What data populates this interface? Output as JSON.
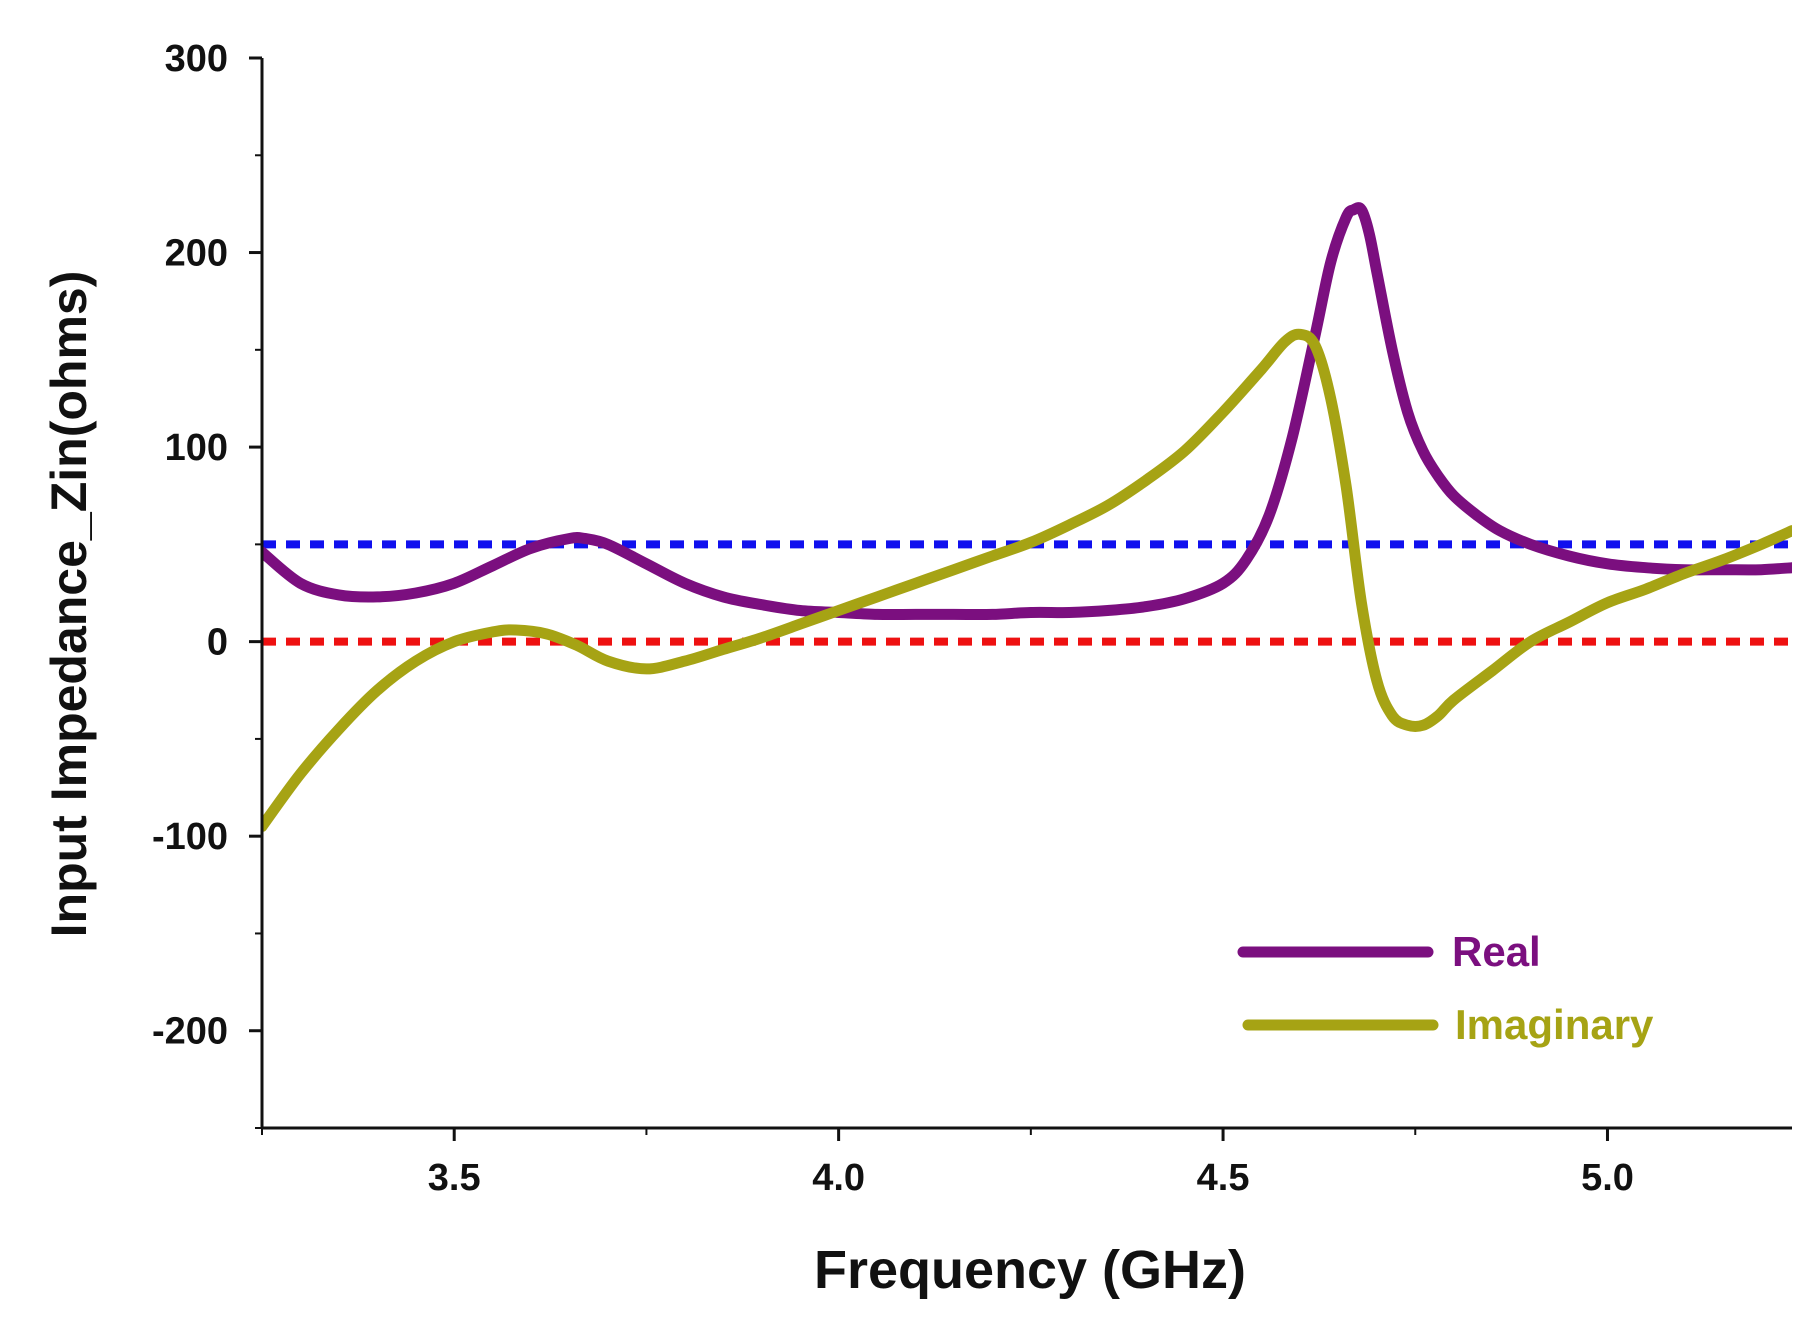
{
  "chart_data": {
    "type": "line",
    "title": "",
    "xlabel": "Frequency (GHz)",
    "ylabel": "Input Impedance_Zin(ohms)",
    "xlim": [
      3.25,
      5.24
    ],
    "ylim": [
      -250,
      300
    ],
    "x_ticks": [
      3.5,
      4.0,
      4.5,
      5.0
    ],
    "x_tick_labels": [
      "3.5",
      "4.0",
      "4.5",
      "5.0"
    ],
    "x_minor_ticks": [
      3.25,
      3.75,
      4.25,
      4.75
    ],
    "y_ticks": [
      -200,
      -100,
      0,
      100,
      200,
      300
    ],
    "y_tick_labels": [
      "-200",
      "-100",
      "0",
      "100",
      "200",
      "300"
    ],
    "y_minor_ticks": [
      -250,
      -150,
      -50,
      50,
      150,
      250
    ],
    "grid": false,
    "legend_position": "bottom-right",
    "series": [
      {
        "name": "Real",
        "color": "#7b0f7f",
        "x": [
          3.25,
          3.3,
          3.35,
          3.4,
          3.45,
          3.5,
          3.55,
          3.6,
          3.65,
          3.67,
          3.7,
          3.75,
          3.8,
          3.85,
          3.9,
          3.95,
          4.0,
          4.05,
          4.1,
          4.15,
          4.2,
          4.25,
          4.3,
          4.35,
          4.4,
          4.45,
          4.5,
          4.53,
          4.56,
          4.59,
          4.62,
          4.64,
          4.66,
          4.67,
          4.68,
          4.69,
          4.7,
          4.72,
          4.74,
          4.76,
          4.78,
          4.8,
          4.83,
          4.86,
          4.9,
          4.95,
          5.0,
          5.05,
          5.1,
          5.15,
          5.2,
          5.24
        ],
        "values": [
          46,
          30,
          24,
          23,
          25,
          30,
          39,
          48,
          53,
          53,
          50,
          40,
          30,
          23,
          19,
          16,
          15,
          14,
          14,
          14,
          14,
          15,
          15,
          16,
          18,
          22,
          30,
          42,
          65,
          105,
          158,
          195,
          218,
          222,
          222,
          210,
          190,
          150,
          118,
          98,
          85,
          75,
          65,
          57,
          50,
          44,
          40,
          38,
          37,
          37,
          37,
          38
        ]
      },
      {
        "name": "Imaginary",
        "color": "#a6a314",
        "x": [
          3.25,
          3.3,
          3.35,
          3.4,
          3.45,
          3.5,
          3.55,
          3.58,
          3.62,
          3.66,
          3.7,
          3.75,
          3.8,
          3.85,
          3.9,
          3.95,
          4.0,
          4.05,
          4.1,
          4.15,
          4.2,
          4.25,
          4.3,
          4.35,
          4.4,
          4.45,
          4.5,
          4.55,
          4.58,
          4.6,
          4.62,
          4.64,
          4.66,
          4.68,
          4.7,
          4.72,
          4.74,
          4.76,
          4.78,
          4.8,
          4.85,
          4.9,
          4.95,
          5.0,
          5.05,
          5.1,
          5.15,
          5.2,
          5.24
        ],
        "values": [
          -95,
          -68,
          -45,
          -25,
          -10,
          0,
          5,
          6,
          4,
          -2,
          -10,
          -14,
          -10,
          -4,
          2,
          9,
          16,
          23,
          30,
          37,
          44,
          51,
          60,
          70,
          83,
          98,
          118,
          140,
          154,
          158,
          152,
          125,
          80,
          20,
          -20,
          -38,
          -43,
          -43,
          -38,
          -30,
          -15,
          0,
          10,
          20,
          27,
          35,
          42,
          50,
          57
        ]
      }
    ],
    "reference_lines": [
      {
        "name": "50 ohm reference",
        "y": 50,
        "color": "#1010ee",
        "style": "dashed"
      },
      {
        "name": "0 ohm reference",
        "y": 0,
        "color": "#ee1111",
        "style": "dashed"
      }
    ]
  }
}
